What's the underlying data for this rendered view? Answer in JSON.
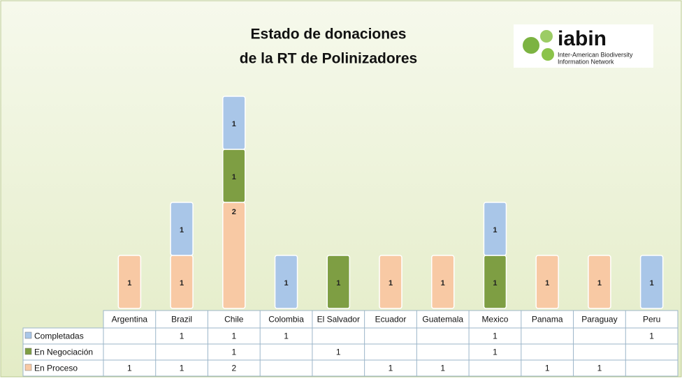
{
  "chart_data": {
    "type": "stacked-bar",
    "title": [
      "Estado de donaciones",
      "de la RT de Polinizadores"
    ],
    "logo": {
      "name": "iabin",
      "subtitle": [
        "Inter-American Biodiversity",
        "Information Network"
      ]
    },
    "categories": [
      "Argentina",
      "Brazil",
      "Chile",
      "Colombia",
      "El Salvador",
      "Ecuador",
      "Guatemala",
      "Mexico",
      "Panama",
      "Paraguay",
      "Peru"
    ],
    "series": [
      {
        "name": "Completadas",
        "color": "#a9c6e8",
        "values": [
          null,
          1,
          1,
          1,
          null,
          null,
          null,
          1,
          null,
          null,
          1
        ]
      },
      {
        "name": "En Negociación",
        "color": "#7e9e43",
        "values": [
          null,
          null,
          1,
          null,
          1,
          null,
          null,
          1,
          null,
          null,
          null
        ]
      },
      {
        "name": "En Proceso",
        "color": "#f8c9a4",
        "values": [
          1,
          1,
          2,
          null,
          null,
          1,
          1,
          null,
          1,
          1,
          null
        ]
      }
    ]
  }
}
